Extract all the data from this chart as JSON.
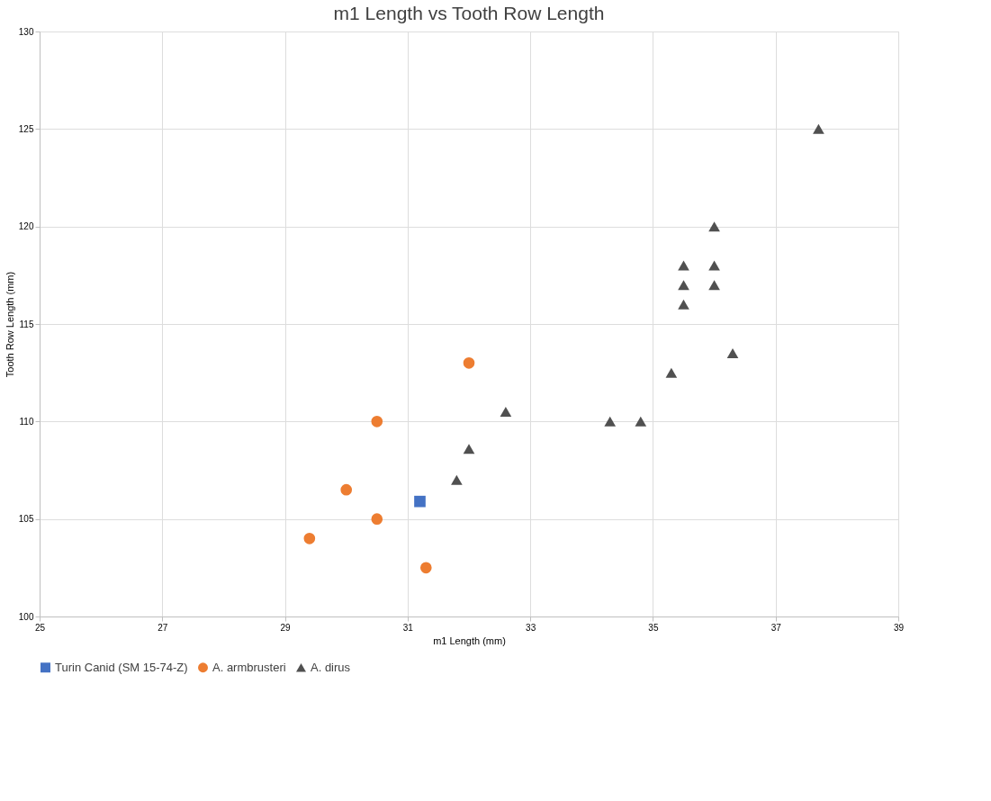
{
  "chart_data": {
    "type": "scatter",
    "title": "m1 Length vs Tooth Row Length",
    "xlabel": "m1 Length (mm)",
    "ylabel": "Tooth Row Length (mm)",
    "xlim": [
      25,
      39
    ],
    "xticks": [
      25,
      27,
      29,
      31,
      33,
      35,
      37,
      39
    ],
    "ylim": [
      100,
      130
    ],
    "yticks": [
      100,
      105,
      110,
      115,
      120,
      125,
      130
    ],
    "grid": true,
    "legend": "bottom",
    "series": [
      {
        "name": "Turin Canid (SM 15-74-Z)",
        "color": "#4472c4",
        "marker": "square",
        "x": [
          31.2
        ],
        "values": [
          105.9
        ]
      },
      {
        "name": "A. armbrusteri",
        "color": "#ed7d31",
        "marker": "circle",
        "x": [
          29.4,
          30.0,
          30.5,
          30.5,
          31.3,
          32.0
        ],
        "values": [
          104.0,
          106.5,
          110.0,
          105.0,
          102.5,
          113.0
        ]
      },
      {
        "name": "A. dirus",
        "color": "#505050",
        "marker": "triangle",
        "x": [
          31.8,
          32.0,
          32.6,
          34.3,
          34.8,
          35.3,
          35.5,
          35.5,
          35.5,
          36.0,
          36.0,
          36.0,
          36.3,
          37.7
        ],
        "values": [
          107.0,
          108.6,
          110.5,
          110.0,
          110.0,
          112.5,
          116.0,
          117.0,
          118.0,
          120.0,
          118.0,
          117.0,
          113.5,
          125.0
        ]
      }
    ]
  }
}
